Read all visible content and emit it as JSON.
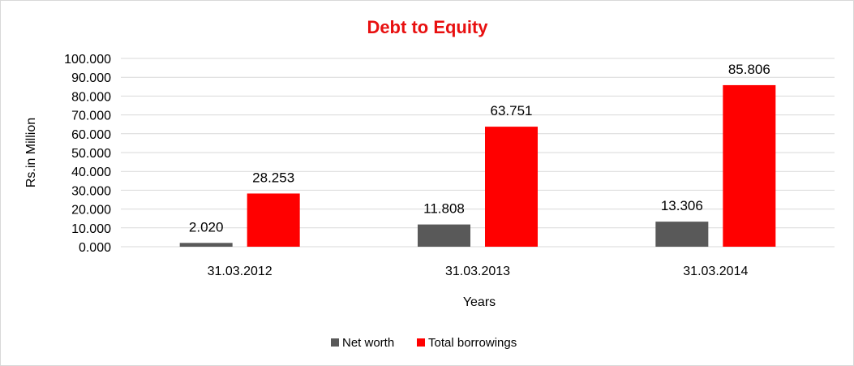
{
  "chart_data": {
    "type": "bar",
    "title": "Debt to Equity",
    "xlabel": "Years",
    "ylabel": "Rs.in Million",
    "categories": [
      "31.03.2012",
      "31.03.2013",
      "31.03.2014"
    ],
    "series": [
      {
        "name": "Net worth",
        "values": [
          2.02,
          11.808,
          13.306
        ],
        "labels": [
          "2.020",
          "11.808",
          "13.306"
        ],
        "color": "#595959"
      },
      {
        "name": "Total borrowings",
        "values": [
          28.253,
          63.751,
          85.806
        ],
        "labels": [
          "28.253",
          "63.751",
          "85.806"
        ],
        "color": "#ff0000"
      }
    ],
    "ylim": [
      0,
      100
    ],
    "yticks": [
      "0.000",
      "10.000",
      "20.000",
      "30.000",
      "40.000",
      "50.000",
      "60.000",
      "70.000",
      "80.000",
      "90.000",
      "100.000"
    ],
    "grid": true,
    "legend_position": "bottom",
    "title_color": "#e81010",
    "gridline_color": "#d9d9d9"
  }
}
